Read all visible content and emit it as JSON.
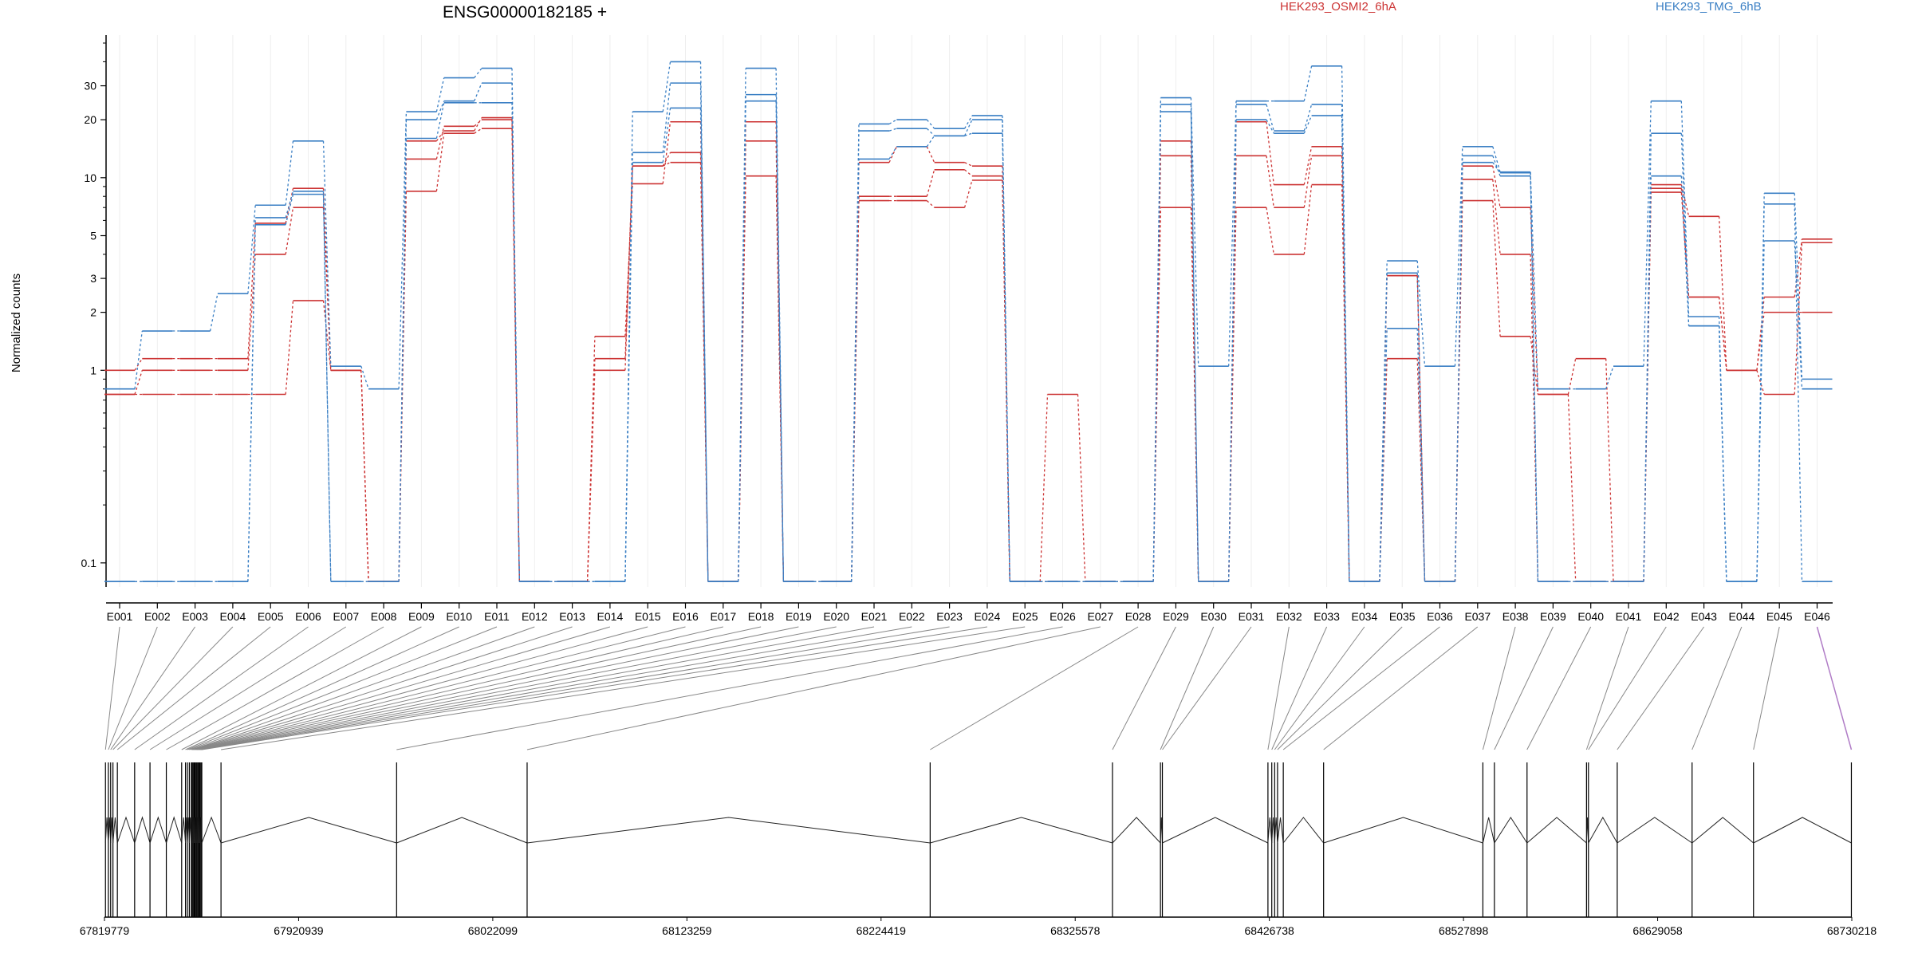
{
  "chart_data": {
    "type": "line",
    "title": "ENSG00000182185 +",
    "ylabel": "Normalized counts",
    "yscale": "log",
    "ylim": [
      0.075,
      55
    ],
    "yticks": [
      0.1,
      1,
      2,
      3,
      5,
      10,
      20,
      30
    ],
    "ytick_labels": [
      "0.1",
      "1",
      "2",
      "3",
      "5",
      "10",
      "20",
      "30"
    ],
    "colors": {
      "HEK293_OSMI2_6hA": "#cc3333",
      "HEK293_TMG_6hB": "#3a7fc4",
      "connector": "#888888",
      "highlight": "#b07cc6"
    },
    "legend": [
      "HEK293_OSMI2_6hA",
      "HEK293_TMG_6hB"
    ],
    "exons": [
      "E001",
      "E002",
      "E003",
      "E004",
      "E005",
      "E006",
      "E007",
      "E008",
      "E009",
      "E010",
      "E011",
      "E012",
      "E013",
      "E014",
      "E015",
      "E016",
      "E017",
      "E018",
      "E019",
      "E020",
      "E021",
      "E022",
      "E023",
      "E024",
      "E025",
      "E026",
      "E027",
      "E028",
      "E029",
      "E030",
      "E031",
      "E032",
      "E033",
      "E034",
      "E035",
      "E036",
      "E037",
      "E038",
      "E039",
      "E040",
      "E041",
      "E042",
      "E043",
      "E044",
      "E045",
      "E046"
    ],
    "series": [
      {
        "name": "HEK293_OSMI2_6hA",
        "values": [
          1.0,
          1.15,
          1.15,
          1.15,
          5.8,
          8.8,
          1.0,
          0.08,
          15.5,
          17.5,
          20.5,
          0.08,
          0.08,
          1.15,
          11.5,
          13.5,
          0.08,
          15.5,
          0.08,
          0.08,
          12.0,
          14.5,
          12.0,
          11.5,
          0.08,
          0.08,
          0.08,
          0.08,
          15.5,
          0.08,
          19.5,
          9.2,
          14.5,
          0.08,
          3.1,
          0.08,
          11.5,
          7.0,
          0.75,
          1.15,
          0.08,
          9.2,
          6.3,
          1.0,
          2.4,
          4.8
        ]
      },
      {
        "name": "HEK293_OSMI2_6hA",
        "values": [
          0.75,
          1.0,
          1.0,
          1.0,
          4.0,
          7.0,
          1.0,
          0.08,
          12.5,
          18.5,
          20.0,
          0.08,
          0.08,
          1.5,
          9.3,
          19.5,
          0.08,
          19.5,
          0.08,
          0.08,
          8.0,
          8.0,
          11.0,
          10.2,
          0.08,
          0.75,
          0.08,
          0.08,
          13.0,
          0.08,
          13.0,
          7.0,
          13.0,
          0.08,
          1.15,
          0.08,
          9.8,
          4.0,
          0.08,
          0.08,
          0.08,
          8.8,
          2.4,
          1.0,
          2.0,
          2.0
        ]
      },
      {
        "name": "HEK293_OSMI2_6hA",
        "values": [
          0.75,
          0.75,
          0.75,
          0.75,
          0.75,
          2.3,
          1.0,
          0.08,
          8.5,
          17.0,
          18.0,
          0.08,
          0.08,
          1.0,
          11.5,
          12.0,
          0.08,
          10.2,
          0.08,
          0.08,
          7.6,
          7.6,
          7.0,
          9.7,
          0.08,
          0.08,
          0.08,
          0.08,
          7.0,
          0.08,
          7.0,
          4.0,
          9.2,
          0.08,
          3.1,
          0.08,
          7.6,
          1.5,
          0.75,
          0.08,
          0.08,
          8.4,
          2.4,
          1.0,
          0.75,
          4.6
        ]
      },
      {
        "name": "HEK293_TMG_6hB",
        "values": [
          0.8,
          1.6,
          1.6,
          2.5,
          7.2,
          15.5,
          1.05,
          0.8,
          22.0,
          33.0,
          37.0,
          0.08,
          0.08,
          0.08,
          22.0,
          40.0,
          0.08,
          37.0,
          0.08,
          0.08,
          19.0,
          20.0,
          18.0,
          21.0,
          0.08,
          0.08,
          0.08,
          0.08,
          26.0,
          1.05,
          25.0,
          25.0,
          38.0,
          0.08,
          3.7,
          1.05,
          14.5,
          10.7,
          0.8,
          0.8,
          1.05,
          25.0,
          1.9,
          0.08,
          8.3,
          0.9
        ]
      },
      {
        "name": "HEK293_TMG_6hB",
        "values": [
          0.08,
          0.08,
          0.08,
          0.08,
          6.2,
          8.5,
          0.08,
          0.08,
          20.0,
          25.0,
          31.0,
          0.08,
          0.08,
          0.08,
          13.5,
          31.0,
          0.08,
          27.0,
          0.08,
          0.08,
          17.5,
          18.0,
          16.5,
          20.0,
          0.08,
          0.08,
          0.08,
          0.08,
          24.0,
          0.08,
          24.0,
          17.5,
          24.0,
          0.08,
          3.2,
          0.08,
          13.0,
          10.2,
          0.08,
          0.08,
          0.08,
          17.0,
          1.7,
          0.08,
          7.3,
          0.08
        ]
      },
      {
        "name": "HEK293_TMG_6hB",
        "values": [
          0.08,
          0.08,
          0.08,
          0.08,
          5.7,
          8.2,
          0.08,
          0.08,
          16.0,
          24.5,
          24.5,
          0.08,
          0.08,
          0.08,
          12.0,
          23.0,
          0.08,
          25.0,
          0.08,
          0.08,
          12.5,
          14.5,
          16.5,
          17.0,
          0.08,
          0.08,
          0.08,
          0.08,
          22.0,
          0.08,
          20.0,
          17.0,
          21.0,
          0.08,
          1.65,
          0.08,
          12.0,
          10.6,
          0.08,
          0.08,
          0.08,
          10.2,
          1.7,
          0.08,
          4.7,
          0.8
        ]
      }
    ],
    "genome_ticks": [
      "67819779",
      "67920939",
      "68022099",
      "68123259",
      "68224419",
      "68325578",
      "68426738",
      "68527898",
      "68629058",
      "68730218"
    ],
    "genome_range": [
      67819779,
      68730218
    ],
    "exon_genomic_positions": [
      67820300,
      67821800,
      67823000,
      67824200,
      67826500,
      67835500,
      67843500,
      67852000,
      67860000,
      67862000,
      67863000,
      67864000,
      67865000,
      67865500,
      67866000,
      67866500,
      67867000,
      67867500,
      67868000,
      67868500,
      67869000,
      67869500,
      67870000,
      67870500,
      67880500,
      67972000,
      68040000,
      68250000,
      68345000,
      68370000,
      68371000,
      68426000,
      68428000,
      68429500,
      68431000,
      68434000,
      68455000,
      68538000,
      68544000,
      68561000,
      68592000,
      68593000,
      68608000,
      68647000,
      68679000,
      68730000
    ]
  }
}
